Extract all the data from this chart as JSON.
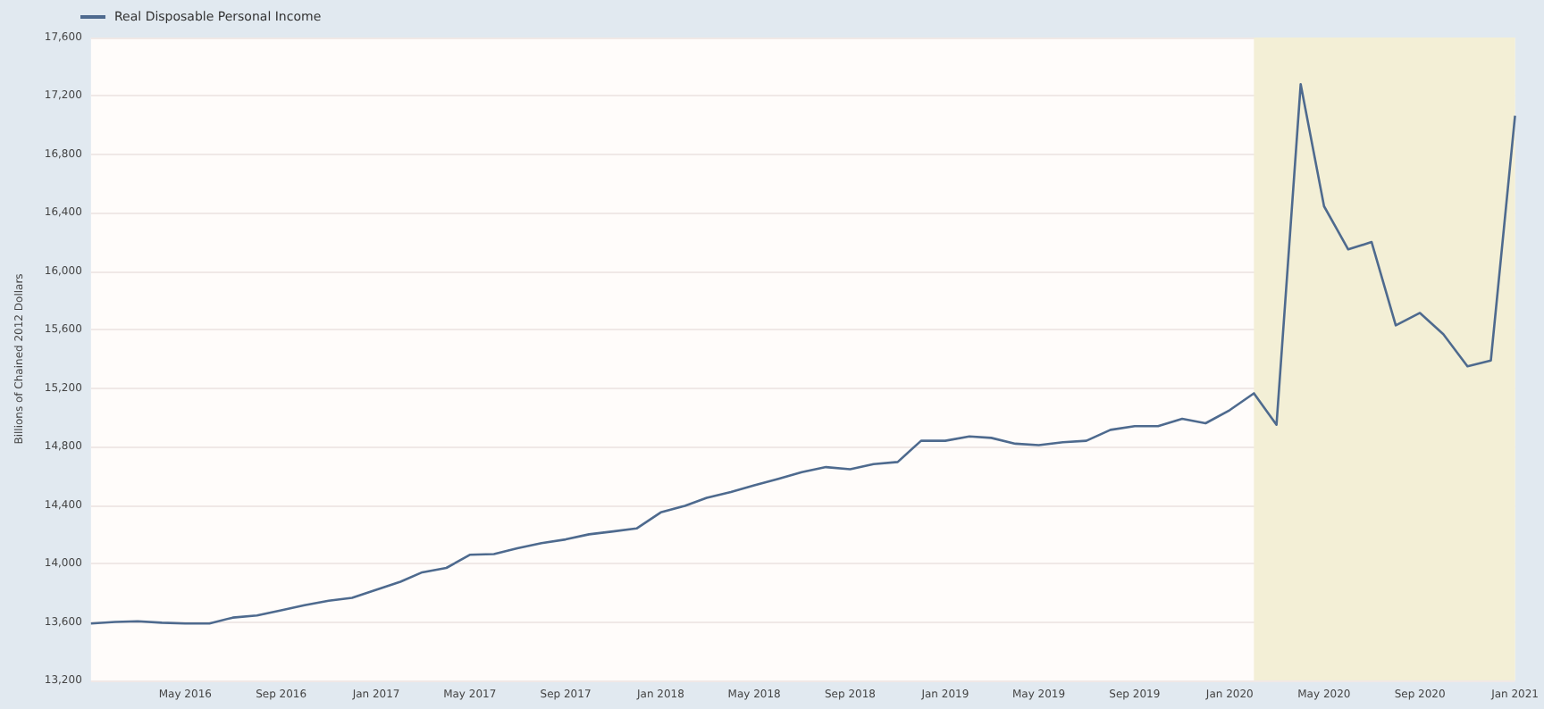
{
  "chart_data": {
    "type": "line",
    "ylabel": "Billions of Chained 2012 Dollars",
    "legend": "top left",
    "grid": "y",
    "marker": "none",
    "line_style": "solid",
    "x": [
      "2016-01",
      "2016-02",
      "2016-03",
      "2016-04",
      "2016-05",
      "2016-06",
      "2016-07",
      "2016-08",
      "2016-09",
      "2016-10",
      "2016-11",
      "2016-12",
      "2017-01",
      "2017-02",
      "2017-03",
      "2017-04",
      "2017-05",
      "2017-06",
      "2017-07",
      "2017-08",
      "2017-09",
      "2017-10",
      "2017-11",
      "2017-12",
      "2018-01",
      "2018-02",
      "2018-03",
      "2018-04",
      "2018-05",
      "2018-06",
      "2018-07",
      "2018-08",
      "2018-09",
      "2018-10",
      "2018-11",
      "2018-12",
      "2019-01",
      "2019-02",
      "2019-03",
      "2019-04",
      "2019-05",
      "2019-06",
      "2019-07",
      "2019-08",
      "2019-09",
      "2019-10",
      "2019-11",
      "2019-12",
      "2020-01",
      "2020-02",
      "2020-03",
      "2020-04",
      "2020-05",
      "2020-06",
      "2020-07",
      "2020-08",
      "2020-09",
      "2020-10",
      "2020-11",
      "2020-12",
      "2021-01"
    ],
    "series": [
      {
        "name": "Real Disposable Personal Income",
        "color": "#4e6a8e",
        "values": [
          13590,
          13600,
          13605,
          13595,
          13590,
          13590,
          13630,
          13645,
          13680,
          13715,
          13745,
          13765,
          13820,
          13875,
          13940,
          13970,
          14060,
          14065,
          14105,
          14140,
          14165,
          14200,
          14220,
          14240,
          14350,
          14395,
          14450,
          14490,
          14535,
          14580,
          14625,
          14660,
          14645,
          14680,
          14695,
          14840,
          14840,
          14870,
          14860,
          14820,
          14810,
          14830,
          14840,
          14915,
          14940,
          14940,
          14990,
          14960,
          15050,
          15165,
          14950,
          17280,
          16445,
          16150,
          16200,
          15630,
          15715,
          15570,
          15350,
          15390,
          17065
        ]
      }
    ],
    "xlim": [
      "2016-01",
      "2021-01"
    ],
    "xticks": [
      {
        "value": "2016-05",
        "label": "May 2016"
      },
      {
        "value": "2016-09",
        "label": "Sep 2016"
      },
      {
        "value": "2017-01",
        "label": "Jan 2017"
      },
      {
        "value": "2017-05",
        "label": "May 2017"
      },
      {
        "value": "2017-09",
        "label": "Sep 2017"
      },
      {
        "value": "2018-01",
        "label": "Jan 2018"
      },
      {
        "value": "2018-05",
        "label": "May 2018"
      },
      {
        "value": "2018-09",
        "label": "Sep 2018"
      },
      {
        "value": "2019-01",
        "label": "Jan 2019"
      },
      {
        "value": "2019-05",
        "label": "May 2019"
      },
      {
        "value": "2019-09",
        "label": "Sep 2019"
      },
      {
        "value": "2020-01",
        "label": "Jan 2020"
      },
      {
        "value": "2020-05",
        "label": "May 2020"
      },
      {
        "value": "2020-09",
        "label": "Sep 2020"
      },
      {
        "value": "2021-01",
        "label": "Jan 2021"
      }
    ],
    "ylim": [
      13200,
      17600
    ],
    "yticks": [
      {
        "value": 13200,
        "label": "13,200"
      },
      {
        "value": 13600,
        "label": "13,600"
      },
      {
        "value": 14000,
        "label": "14,000"
      },
      {
        "value": 14400,
        "label": "14,400"
      },
      {
        "value": 14800,
        "label": "14,800"
      },
      {
        "value": 15200,
        "label": "15,200"
      },
      {
        "value": 15600,
        "label": "15,600"
      },
      {
        "value": 16000,
        "label": "16,000"
      },
      {
        "value": 16400,
        "label": "16,400"
      },
      {
        "value": 16800,
        "label": "16,800"
      },
      {
        "value": 17200,
        "label": "17,200"
      },
      {
        "value": 17600,
        "label": "17,600"
      }
    ],
    "bands": [
      {
        "axis": "x",
        "from": "2020-02",
        "to": "2021-01",
        "color": "#f3efd6"
      }
    ]
  }
}
